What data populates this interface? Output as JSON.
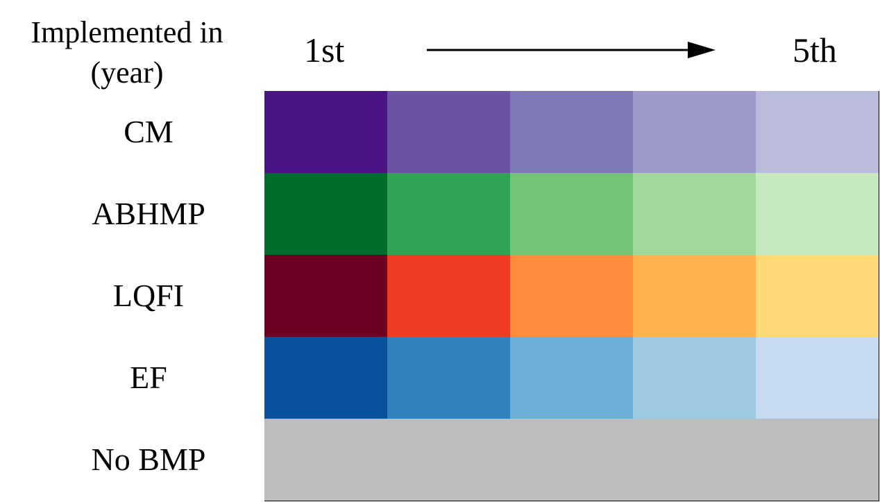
{
  "header": {
    "title_line1": "Implemented in",
    "title_line2": "(year)",
    "start_label": "1st",
    "end_label": "5th"
  },
  "rows": [
    {
      "label": "CM",
      "colors": [
        "#4b1485",
        "#6b52a3",
        "#8079b8",
        "#9c98c8",
        "#bbbbdb"
      ]
    },
    {
      "label": "ABHMP",
      "colors": [
        "#006d2c",
        "#31a354",
        "#74c476",
        "#a1d99b",
        "#c7e9c0"
      ]
    },
    {
      "label": "LQFI",
      "colors": [
        "#6d0124",
        "#ef3b21",
        "#fd8d3c",
        "#feb24c",
        "#fed976"
      ]
    },
    {
      "label": "EF",
      "colors": [
        "#08519c",
        "#3182bd",
        "#6baed6",
        "#9ecae1",
        "#c6dbef"
      ]
    }
  ],
  "no_bmp": {
    "label": "No BMP",
    "color": "#bdbdbd"
  }
}
